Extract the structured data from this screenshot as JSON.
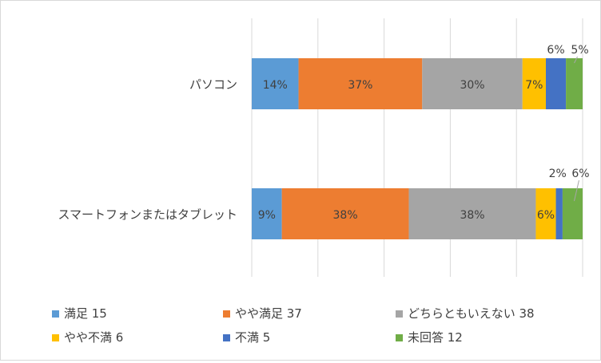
{
  "chart_data": {
    "type": "bar",
    "orientation": "horizontal",
    "stacked": "percent",
    "categories": [
      "パソコン",
      "スマートフォンまたはタブレット"
    ],
    "series": [
      {
        "name": "満足 15",
        "color": "#5b9bd5",
        "values": [
          14,
          9
        ],
        "labels": [
          "14%",
          "9%"
        ]
      },
      {
        "name": "やや満足 37",
        "color": "#ed7d31",
        "values": [
          37,
          38
        ],
        "labels": [
          "37%",
          "38%"
        ]
      },
      {
        "name": "どちらともいえない 38",
        "color": "#a5a5a5",
        "values": [
          30,
          38
        ],
        "labels": [
          "30%",
          "38%"
        ]
      },
      {
        "name": "やや不満 6",
        "color": "#ffc000",
        "values": [
          7,
          6
        ],
        "labels": [
          "7%",
          "6%"
        ]
      },
      {
        "name": "不満 5",
        "color": "#4472c4",
        "values": [
          6,
          2
        ],
        "labels": [
          "6%",
          "2%"
        ]
      },
      {
        "name": "未回答 12",
        "color": "#70ad47",
        "values": [
          5,
          6
        ],
        "labels": [
          "5%",
          "6%"
        ]
      }
    ],
    "xlim": [
      0,
      100
    ],
    "grid": true,
    "legend": "bottom"
  }
}
